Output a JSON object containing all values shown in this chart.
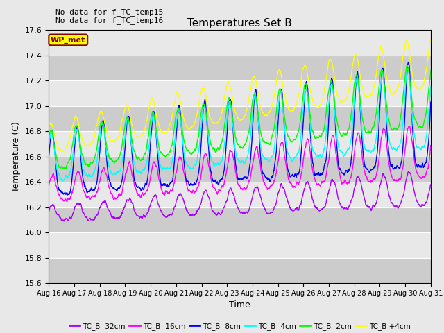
{
  "title": "Temperatures Set B",
  "xlabel": "Time",
  "ylabel": "Temperature (C)",
  "ylim": [
    15.6,
    17.6
  ],
  "annotation_text": "WP_met",
  "top_text": "No data for f_TC_temp15\nNo data for f_TC_temp16",
  "series_labels": [
    "TC_B -32cm",
    "TC_B -16cm",
    "TC_B -8cm",
    "TC_B -4cm",
    "TC_B -2cm",
    "TC_B +4cm"
  ],
  "series_colors": [
    "#aa00ff",
    "#ff00ff",
    "#0000ff",
    "#00ffff",
    "#00ff00",
    "#ffff00"
  ],
  "line_width": 1.0,
  "x_tick_labels": [
    "Aug 16",
    "Aug 17",
    "Aug 18",
    "Aug 19",
    "Aug 20",
    "Aug 21",
    "Aug 22",
    "Aug 23",
    "Aug 24",
    "Aug 25",
    "Aug 26",
    "Aug 27",
    "Aug 28",
    "Aug 29",
    "Aug 30",
    "Aug 31"
  ],
  "background_color": "#e8e8e8",
  "n_points": 2000
}
